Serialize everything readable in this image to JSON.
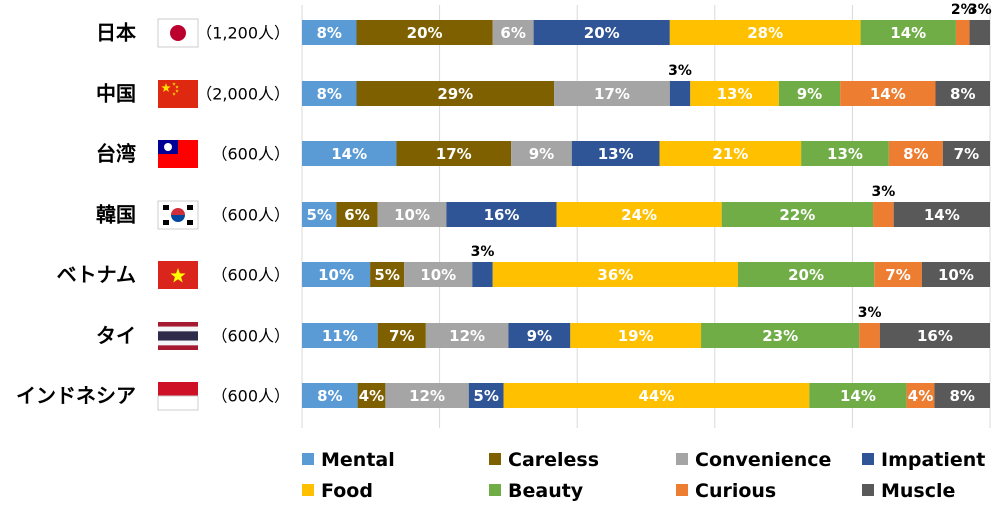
{
  "chart_data": {
    "type": "bar",
    "orientation": "horizontal",
    "stacked": true,
    "normalized_100": true,
    "categories": [
      "日本",
      "中国",
      "台湾",
      "韓国",
      "ベトナム",
      "タイ",
      "インドネシア"
    ],
    "sample_sizes": [
      "（1,200人）",
      "（2,000人）",
      "（600人）",
      "（600人）",
      "（600人）",
      "（600人）",
      "（600人）"
    ],
    "flags": [
      "japan-flag",
      "china-flag",
      "taiwan-flag",
      "south-korea-flag",
      "vietnam-flag",
      "thailand-flag",
      "indonesia-flag"
    ],
    "series": [
      {
        "name": "Mental",
        "color": "#5B9BD5",
        "label_color": "#FFFFFF",
        "values": [
          8,
          8,
          14,
          5,
          10,
          11,
          8
        ]
      },
      {
        "name": "Careless",
        "color": "#7F6000",
        "label_color": "#FFFFFF",
        "values": [
          20,
          29,
          17,
          6,
          5,
          7,
          4
        ]
      },
      {
        "name": "Convenience",
        "color": "#A5A5A5",
        "label_color": "#FFFFFF",
        "values": [
          6,
          17,
          9,
          10,
          10,
          12,
          12
        ]
      },
      {
        "name": "Impatient",
        "color": "#2F5597",
        "label_color": "#FFFFFF",
        "values": [
          20,
          3,
          13,
          16,
          3,
          9,
          5
        ]
      },
      {
        "name": "Food",
        "color": "#FFC000",
        "label_color": "#FFFFFF",
        "values": [
          28,
          13,
          21,
          24,
          36,
          19,
          44
        ]
      },
      {
        "name": "Beauty",
        "color": "#70AD47",
        "label_color": "#FFFFFF",
        "values": [
          14,
          9,
          13,
          22,
          20,
          23,
          14
        ]
      },
      {
        "name": "Curious",
        "color": "#ED7D31",
        "label_color": "#FFFFFF",
        "values": [
          2,
          14,
          8,
          3,
          7,
          3,
          4
        ]
      },
      {
        "name": "Muscle",
        "color": "#595959",
        "label_color": "#FFFFFF",
        "values": [
          3,
          8,
          7,
          14,
          10,
          16,
          8
        ]
      }
    ],
    "value_suffix": "%",
    "xlim": [
      0,
      100
    ],
    "grid": true,
    "legend_position": "bottom"
  }
}
